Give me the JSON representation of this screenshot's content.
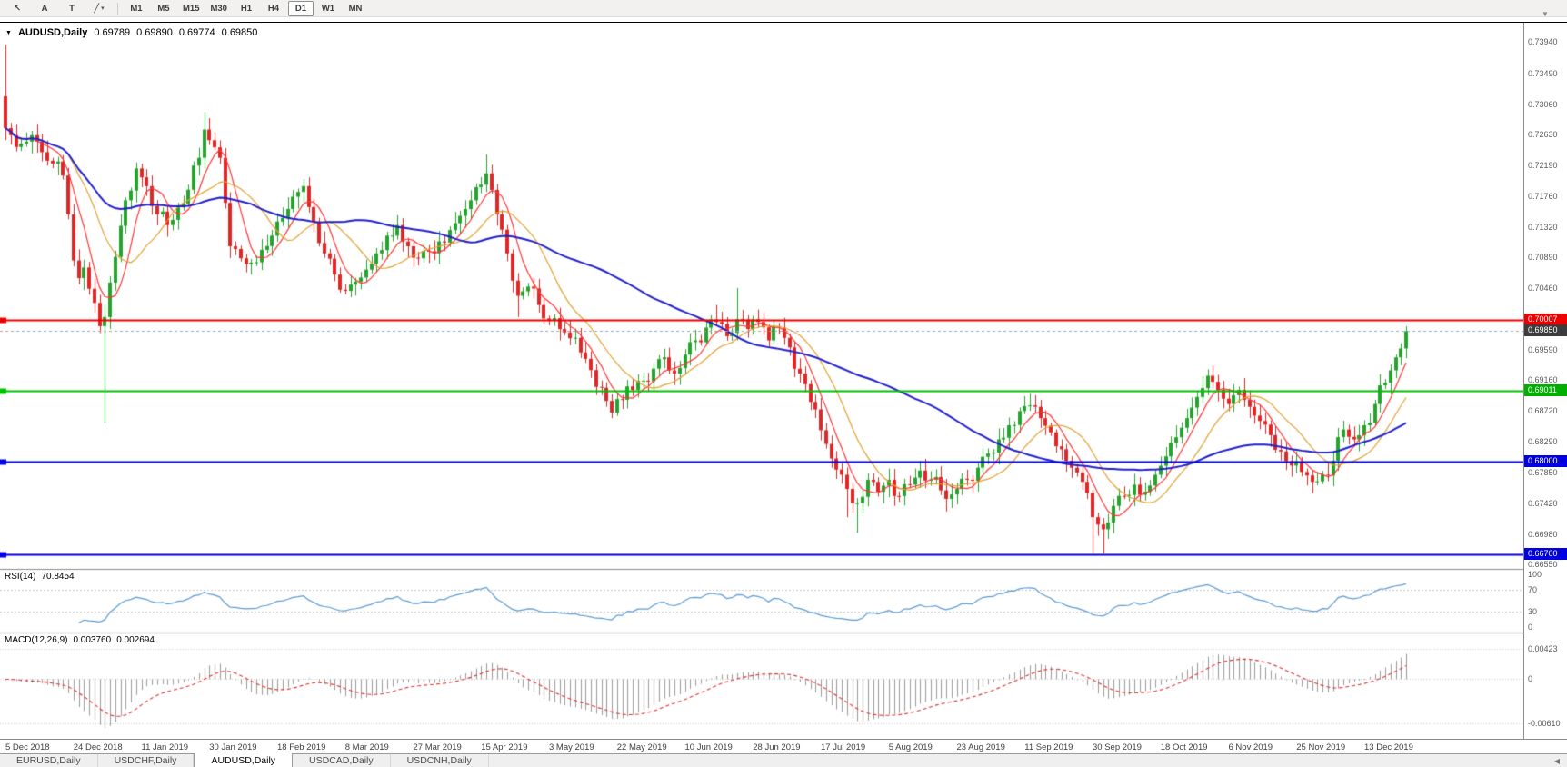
{
  "toolbar": {
    "tools": [
      {
        "name": "cursor-tool",
        "glyph": "↖"
      },
      {
        "name": "text-label-tool",
        "glyph": "A"
      },
      {
        "name": "text-tool",
        "glyph": "T"
      },
      {
        "name": "draw-tools",
        "glyph": "╱",
        "caret": "▾"
      }
    ],
    "timeframes": [
      "M1",
      "M5",
      "M15",
      "M30",
      "H1",
      "H4",
      "D1",
      "W1",
      "MN"
    ],
    "active_timeframe": "D1",
    "shift_marker": "▼"
  },
  "chart": {
    "title": {
      "marker": "▼",
      "symbol": "AUDUSD,Daily",
      "open": "0.69789",
      "high": "0.69890",
      "low": "0.69774",
      "close": "0.69850"
    },
    "rsi_label": {
      "name": "RSI(14)",
      "value": "70.8454"
    },
    "macd_label": {
      "name": "MACD(12,26,9)",
      "value1": "0.003760",
      "value2": "0.002694"
    }
  },
  "chart_data": {
    "type": "candlestick",
    "symbol": "AUDUSD",
    "timeframe": "Daily",
    "last_close": 0.6985,
    "candle_colors": {
      "up": "#26a32e",
      "down": "#df2727"
    },
    "price_axis": {
      "max": 0.7421,
      "min": 0.6649,
      "tick_labels": [
        {
          "text": "0.73940",
          "value": 0.7394
        },
        {
          "text": "0.73490",
          "value": 0.7349
        },
        {
          "text": "0.73060",
          "value": 0.7306
        },
        {
          "text": "0.72630",
          "value": 0.7263
        },
        {
          "text": "0.72190",
          "value": 0.7219
        },
        {
          "text": "0.71760",
          "value": 0.7176
        },
        {
          "text": "0.71320",
          "value": 0.7132
        },
        {
          "text": "0.70890",
          "value": 0.7089
        },
        {
          "text": "0.70460",
          "value": 0.7046
        },
        {
          "text": "0.70020",
          "value": 0.7002
        },
        {
          "text": "0.69590",
          "value": 0.6959
        },
        {
          "text": "0.69160",
          "value": 0.6916
        },
        {
          "text": "0.68720",
          "value": 0.6872
        },
        {
          "text": "0.68290",
          "value": 0.6829
        },
        {
          "text": "0.67850",
          "value": 0.6785
        },
        {
          "text": "0.67420",
          "value": 0.6742
        },
        {
          "text": "0.66980",
          "value": 0.6698
        },
        {
          "text": "0.66550",
          "value": 0.6655
        }
      ]
    },
    "hlines": [
      {
        "price": 0.70007,
        "label": "0.70007",
        "line_color": "#ee0000",
        "badge_color": "#ee0000",
        "style": "solid",
        "width": 2
      },
      {
        "price": 0.6985,
        "label": "0.69850",
        "line_color": "#a8a8a8",
        "badge_color": "#3c3c3c",
        "style": "dashed",
        "width": 1
      },
      {
        "price": 0.69011,
        "label": "0.69011",
        "line_color": "#00c200",
        "badge_color": "#00b000",
        "style": "solid",
        "width": 2
      },
      {
        "price": 0.68,
        "label": "0.68000",
        "line_color": "#0000e0",
        "badge_color": "#0000e0",
        "style": "solid",
        "width": 2
      },
      {
        "price": 0.667,
        "label": "0.66700",
        "line_color": "#0000e0",
        "badge_color": "#0000e0",
        "style": "solid",
        "width": 2
      }
    ],
    "x_axis": {
      "labels": [
        {
          "text": "5 Dec 2018",
          "day": 0
        },
        {
          "text": "24 Dec 2018",
          "day": 13
        },
        {
          "text": "11 Jan 2019",
          "day": 26
        },
        {
          "text": "30 Jan 2019",
          "day": 39
        },
        {
          "text": "18 Feb 2019",
          "day": 52
        },
        {
          "text": "8 Mar 2019",
          "day": 65
        },
        {
          "text": "27 Mar 2019",
          "day": 78
        },
        {
          "text": "15 Apr 2019",
          "day": 91
        },
        {
          "text": "3 May 2019",
          "day": 104
        },
        {
          "text": "22 May 2019",
          "day": 117
        },
        {
          "text": "10 Jun 2019",
          "day": 130
        },
        {
          "text": "28 Jun 2019",
          "day": 143
        },
        {
          "text": "17 Jul 2019",
          "day": 156
        },
        {
          "text": "5 Aug 2019",
          "day": 169
        },
        {
          "text": "23 Aug 2019",
          "day": 182
        },
        {
          "text": "11 Sep 2019",
          "day": 195
        },
        {
          "text": "30 Sep 2019",
          "day": 208
        },
        {
          "text": "18 Oct 2019",
          "day": 221
        },
        {
          "text": "6 Nov 2019",
          "day": 234
        },
        {
          "text": "25 Nov 2019",
          "day": 247
        },
        {
          "text": "13 Dec 2019",
          "day": 260
        }
      ]
    },
    "total_days": 268,
    "first_open": 0.7317,
    "candles_anchors": [
      [
        0,
        0.7272,
        0.739,
        null
      ],
      [
        1,
        0.7262
      ],
      [
        3,
        0.725
      ],
      [
        5,
        0.7262
      ],
      [
        7,
        0.7238
      ],
      [
        9,
        0.7222
      ],
      [
        11,
        0.7205
      ],
      [
        12,
        0.715
      ],
      [
        13,
        0.7085
      ],
      [
        14,
        0.706
      ],
      [
        15,
        0.7075
      ],
      [
        16,
        0.7045
      ],
      [
        17,
        0.7025
      ],
      [
        18,
        0.6992
      ],
      [
        19,
        0.7005,
        null,
        0.6855
      ],
      [
        21,
        0.709
      ],
      [
        23,
        0.717
      ],
      [
        25,
        0.7215
      ],
      [
        27,
        0.719
      ],
      [
        29,
        0.715
      ],
      [
        31,
        0.7135
      ],
      [
        33,
        0.716
      ],
      [
        35,
        0.7185
      ],
      [
        37,
        0.723
      ],
      [
        38,
        0.727,
        0.7295,
        null
      ],
      [
        39,
        0.7255
      ],
      [
        41,
        0.723
      ],
      [
        43,
        0.7105
      ],
      [
        45,
        0.7088
      ],
      [
        47,
        0.7082
      ],
      [
        49,
        0.71
      ],
      [
        51,
        0.712
      ],
      [
        53,
        0.7145
      ],
      [
        55,
        0.7175
      ],
      [
        57,
        0.719
      ],
      [
        59,
        0.714
      ],
      [
        61,
        0.7095
      ],
      [
        63,
        0.7065
      ],
      [
        65,
        0.7042
      ],
      [
        67,
        0.7055
      ],
      [
        69,
        0.7072
      ],
      [
        71,
        0.7095
      ],
      [
        73,
        0.712
      ],
      [
        75,
        0.7135,
        0.7149,
        null
      ],
      [
        77,
        0.7105
      ],
      [
        79,
        0.7088
      ],
      [
        81,
        0.7098
      ],
      [
        83,
        0.7112
      ],
      [
        85,
        0.7128
      ],
      [
        87,
        0.7148
      ],
      [
        89,
        0.717
      ],
      [
        91,
        0.7192
      ],
      [
        92,
        0.7208,
        0.7235,
        null
      ],
      [
        94,
        0.715
      ],
      [
        96,
        0.7095
      ],
      [
        98,
        0.7035,
        null,
        0.7005
      ],
      [
        100,
        0.7048
      ],
      [
        102,
        0.7022
      ],
      [
        104,
        0.7
      ],
      [
        106,
        0.6988
      ],
      [
        108,
        0.6975
      ],
      [
        110,
        0.6955
      ],
      [
        112,
        0.693
      ],
      [
        114,
        0.6905
      ],
      [
        116,
        0.687,
        null,
        0.6864
      ],
      [
        118,
        0.6888
      ],
      [
        120,
        0.6902
      ],
      [
        122,
        0.6915
      ],
      [
        124,
        0.6932
      ],
      [
        126,
        0.6948
      ],
      [
        128,
        0.6925
      ],
      [
        130,
        0.6952
      ],
      [
        132,
        0.6972
      ],
      [
        134,
        0.699
      ],
      [
        136,
        0.6998,
        0.7022,
        null
      ],
      [
        138,
        0.6978
      ],
      [
        140,
        0.7002,
        0.7046,
        null
      ],
      [
        142,
        0.6988
      ],
      [
        144,
        0.6998
      ],
      [
        146,
        0.6972
      ],
      [
        148,
        0.699
      ],
      [
        150,
        0.6962
      ],
      [
        152,
        0.6925
      ],
      [
        154,
        0.6885
      ],
      [
        156,
        0.6845
      ],
      [
        158,
        0.6805
      ],
      [
        160,
        0.6782
      ],
      [
        161,
        0.6762,
        null,
        0.6722
      ],
      [
        163,
        0.6742,
        null,
        0.67
      ],
      [
        165,
        0.6775
      ],
      [
        167,
        0.6758
      ],
      [
        169,
        0.6775
      ],
      [
        171,
        0.6752
      ],
      [
        173,
        0.6768
      ],
      [
        175,
        0.6788
      ],
      [
        177,
        0.6775
      ],
      [
        179,
        0.676
      ],
      [
        180,
        0.6748,
        null,
        0.673
      ],
      [
        182,
        0.6762
      ],
      [
        184,
        0.6775
      ],
      [
        186,
        0.6792
      ],
      [
        188,
        0.6812
      ],
      [
        190,
        0.6832
      ],
      [
        192,
        0.6852
      ],
      [
        194,
        0.6872
      ],
      [
        196,
        0.688,
        0.6895,
        null
      ],
      [
        198,
        0.6862
      ],
      [
        200,
        0.6842
      ],
      [
        202,
        0.6818
      ],
      [
        204,
        0.6792
      ],
      [
        206,
        0.6772
      ],
      [
        208,
        0.6722,
        null,
        0.6672
      ],
      [
        210,
        0.6705,
        null,
        0.6671
      ],
      [
        212,
        0.6738
      ],
      [
        214,
        0.6752
      ],
      [
        216,
        0.6768
      ],
      [
        218,
        0.6758
      ],
      [
        220,
        0.6782
      ],
      [
        222,
        0.6808
      ],
      [
        224,
        0.6835
      ],
      [
        226,
        0.6862
      ],
      [
        228,
        0.6892
      ],
      [
        230,
        0.6922,
        0.6931,
        null
      ],
      [
        232,
        0.6902
      ],
      [
        234,
        0.6882
      ],
      [
        236,
        0.6902
      ],
      [
        238,
        0.6878
      ],
      [
        240,
        0.6858
      ],
      [
        242,
        0.6838
      ],
      [
        244,
        0.6815
      ],
      [
        246,
        0.6795
      ],
      [
        248,
        0.6786
      ],
      [
        250,
        0.6772,
        null,
        0.6756
      ],
      [
        252,
        0.6782
      ],
      [
        254,
        0.6802
      ],
      [
        256,
        0.6846
      ],
      [
        258,
        0.6832
      ],
      [
        260,
        0.6852
      ],
      [
        262,
        0.6882
      ],
      [
        264,
        0.6912
      ],
      [
        266,
        0.6948
      ],
      [
        268,
        0.6985,
        0.6992,
        null
      ]
    ],
    "moving_averages": [
      {
        "period": 6,
        "color": "#ff3535",
        "width": 1.2
      },
      {
        "period": 13,
        "color": "#e2a030",
        "width": 1.2
      },
      {
        "period": 48,
        "color": "#2020cc",
        "width": 2
      }
    ],
    "rsi": {
      "period": 14,
      "color": "#5b9bd5",
      "last_value": "70.8454",
      "levels": [
        {
          "text": "100",
          "value": 100,
          "dashed": false
        },
        {
          "text": "70",
          "value": 70,
          "dashed": true
        },
        {
          "text": "30",
          "value": 30,
          "dashed": true
        },
        {
          "text": "0",
          "value": 0,
          "dashed": false
        }
      ]
    },
    "macd": {
      "fast": 12,
      "slow": 26,
      "signal": 9,
      "hist_color": "#9a9a9a",
      "signal_color": "#e03030",
      "last_macd": "0.003760",
      "last_signal": "0.002694",
      "range": {
        "max": 0.0057,
        "min": -0.0076
      },
      "axis_labels": [
        {
          "text": "0.00423",
          "value": 0.00423
        },
        {
          "text": "0",
          "value": 0
        },
        {
          "text": "-0.00610",
          "value": -0.0061
        }
      ]
    }
  },
  "tabs": {
    "items": [
      "EURUSD,Daily",
      "USDCHF,Daily",
      "AUDUSD,Daily",
      "USDCAD,Daily",
      "USDCNH,Daily"
    ],
    "active": "AUDUSD,Daily",
    "scroll_left_glyph": "◀"
  }
}
